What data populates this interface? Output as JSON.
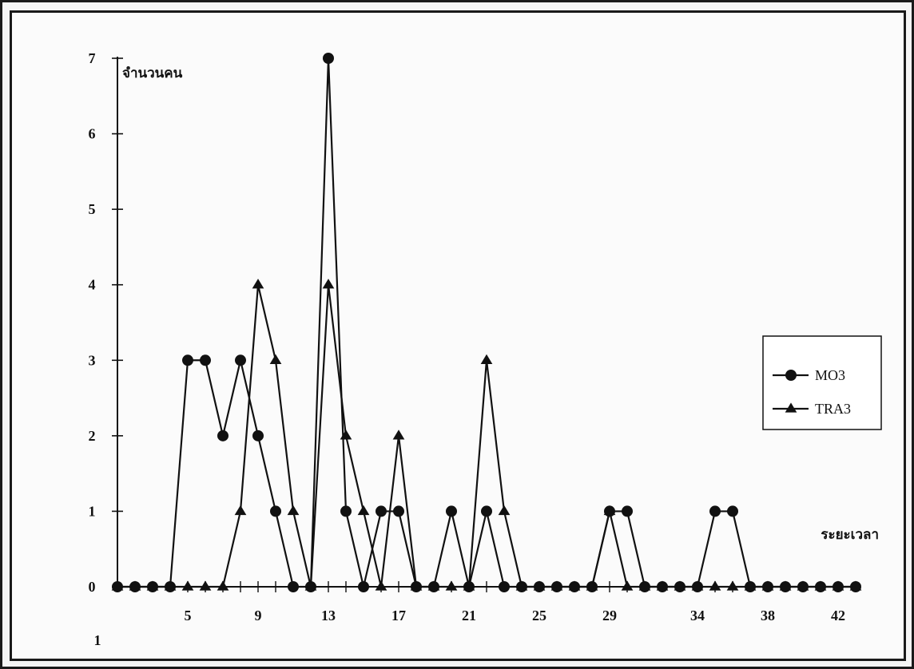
{
  "chart_data": {
    "type": "line",
    "title": "",
    "ylabel": "จำนวนคน",
    "xlabel": "ระยะเวลา",
    "corner_label": "1",
    "x": [
      1,
      2,
      3,
      4,
      5,
      6,
      7,
      8,
      9,
      10,
      11,
      12,
      13,
      14,
      15,
      16,
      17,
      18,
      19,
      20,
      21,
      22,
      23,
      24,
      25,
      26,
      27,
      28,
      29,
      30,
      31,
      32,
      33,
      34,
      35,
      36,
      37,
      38,
      39,
      40,
      41,
      42,
      43
    ],
    "x_tick_labels": [
      {
        "x": 5,
        "label": "5"
      },
      {
        "x": 9,
        "label": "9"
      },
      {
        "x": 13,
        "label": "13"
      },
      {
        "x": 17,
        "label": "17"
      },
      {
        "x": 21,
        "label": "21"
      },
      {
        "x": 25,
        "label": "25"
      },
      {
        "x": 29,
        "label": "29"
      },
      {
        "x": 34,
        "label": "34"
      },
      {
        "x": 38,
        "label": "38"
      },
      {
        "x": 42,
        "label": "42"
      }
    ],
    "xlim": [
      1,
      43
    ],
    "ylim": [
      0,
      7
    ],
    "yticks": [
      0,
      1,
      2,
      3,
      4,
      5,
      6,
      7
    ],
    "grid": false,
    "legend_position": "right",
    "series": [
      {
        "name": "MO3",
        "marker": "circle",
        "values": [
          0,
          0,
          0,
          0,
          3,
          3,
          2,
          3,
          2,
          1,
          0,
          0,
          7,
          1,
          0,
          1,
          1,
          0,
          0,
          1,
          0,
          1,
          0,
          0,
          0,
          0,
          0,
          0,
          1,
          1,
          0,
          0,
          0,
          0,
          1,
          1,
          0,
          0,
          0,
          0,
          0,
          0,
          0
        ]
      },
      {
        "name": "TRA3",
        "marker": "triangle",
        "values": [
          0,
          0,
          0,
          0,
          0,
          0,
          0,
          1,
          4,
          3,
          1,
          0,
          4,
          2,
          1,
          0,
          2,
          0,
          0,
          0,
          0,
          3,
          1,
          0,
          0,
          0,
          0,
          0,
          1,
          0,
          0,
          0,
          0,
          0,
          0,
          0,
          0,
          0,
          0,
          0,
          0,
          0,
          0
        ]
      }
    ],
    "colors": {
      "line": "#111111",
      "background": "#fbfbfb"
    }
  }
}
